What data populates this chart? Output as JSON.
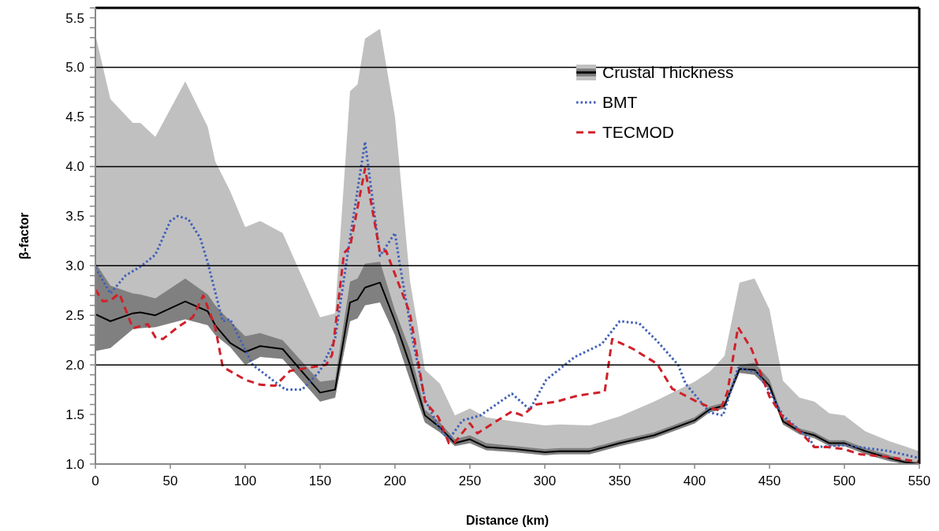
{
  "chart_data": {
    "type": "line",
    "xlabel": "Distance (km)",
    "ylabel": "β-factor",
    "xlim": [
      0,
      550
    ],
    "xticks": [
      0,
      50,
      100,
      150,
      200,
      250,
      300,
      350,
      400,
      450,
      500,
      550
    ],
    "ylim": [
      1.0,
      5.6
    ],
    "yticks": [
      {
        "value": 1.0,
        "label": "1.0"
      },
      1.5,
      {
        "value": 2.0,
        "label": "2.0"
      },
      2.5,
      {
        "value": 3.0,
        "label": "3.0"
      },
      3.5,
      {
        "value": 4.0,
        "label": "4.0"
      },
      4.5,
      {
        "value": 5.0,
        "label": "5.0"
      },
      5.5
    ],
    "grid": "y",
    "legend": "top right",
    "marker": "none",
    "series": [
      {
        "type": "area",
        "color": "#c0c0c0",
        "x": [
          0,
          10,
          25,
          30,
          40,
          60,
          75,
          80,
          90,
          100,
          110,
          125,
          150,
          160,
          170,
          175,
          180,
          190,
          200,
          210,
          220,
          230,
          240,
          250,
          261,
          280,
          300,
          310,
          330,
          350,
          373,
          400,
          410,
          420,
          430,
          440,
          450,
          459,
          470,
          480,
          490,
          500,
          514,
          530,
          540,
          550
        ],
        "values": [
          5.33,
          4.68,
          4.44,
          4.44,
          4.3,
          4.86,
          4.4,
          4.05,
          3.75,
          3.39,
          3.45,
          3.33,
          2.48,
          2.52,
          4.76,
          4.83,
          5.29,
          5.39,
          4.5,
          2.85,
          1.95,
          1.81,
          1.49,
          1.56,
          1.47,
          1.43,
          1.39,
          1.4,
          1.39,
          1.48,
          1.63,
          1.83,
          1.93,
          2.09,
          2.83,
          2.87,
          2.56,
          1.84,
          1.67,
          1.63,
          1.51,
          1.49,
          1.33,
          1.23,
          1.18,
          1.13
        ]
      },
      {
        "name": "Crustal Thickness",
        "color": "#000000",
        "line_style": "solid",
        "x": [
          0,
          10,
          25,
          30,
          40,
          60,
          75,
          80,
          90,
          100,
          110,
          125,
          150,
          160,
          170,
          175,
          180,
          190,
          200,
          210,
          220,
          230,
          240,
          250,
          261,
          280,
          300,
          310,
          330,
          350,
          373,
          400,
          410,
          420,
          430,
          440,
          450,
          459,
          470,
          480,
          490,
          500,
          514,
          530,
          540,
          550
        ],
        "values": [
          2.51,
          2.44,
          2.52,
          2.53,
          2.5,
          2.64,
          2.54,
          2.4,
          2.22,
          2.13,
          2.19,
          2.16,
          1.72,
          1.75,
          2.63,
          2.66,
          2.78,
          2.83,
          2.44,
          2.0,
          1.49,
          1.37,
          1.21,
          1.25,
          1.17,
          1.15,
          1.12,
          1.13,
          1.13,
          1.21,
          1.29,
          1.44,
          1.55,
          1.59,
          1.96,
          1.95,
          1.79,
          1.43,
          1.33,
          1.29,
          1.21,
          1.21,
          1.13,
          1.06,
          1.02,
          1.0
        ],
        "lower": [
          2.14,
          2.17,
          2.36,
          2.37,
          2.38,
          2.46,
          2.4,
          2.3,
          2.18,
          2.0,
          2.08,
          2.06,
          1.63,
          1.67,
          2.44,
          2.47,
          2.6,
          2.63,
          2.3,
          1.85,
          1.42,
          1.32,
          1.18,
          1.21,
          1.14,
          1.12,
          1.09,
          1.1,
          1.1,
          1.18,
          1.26,
          1.41,
          1.52,
          1.56,
          1.92,
          1.9,
          1.75,
          1.4,
          1.3,
          1.26,
          1.18,
          1.18,
          1.1,
          1.03,
          1.0,
          1.0
        ],
        "upper": [
          3.03,
          2.8,
          2.72,
          2.71,
          2.67,
          2.87,
          2.71,
          2.6,
          2.44,
          2.29,
          2.32,
          2.25,
          1.83,
          1.85,
          2.84,
          2.87,
          3.02,
          3.04,
          2.55,
          2.15,
          1.55,
          1.42,
          1.25,
          1.29,
          1.21,
          1.18,
          1.15,
          1.16,
          1.16,
          1.24,
          1.32,
          1.47,
          1.58,
          1.62,
          2.0,
          2.02,
          1.85,
          1.47,
          1.36,
          1.32,
          1.24,
          1.24,
          1.16,
          1.09,
          1.04,
          1.02
        ]
      },
      {
        "name": "BMT",
        "color": "#4060b8",
        "line_style": "dotted",
        "x": [
          0,
          10,
          20,
          30,
          40,
          50,
          55,
          62,
          70,
          75,
          85,
          90,
          105,
          118,
          127,
          138,
          150,
          160,
          168,
          180,
          190,
          200,
          203,
          212,
          220,
          230,
          236,
          245,
          257,
          278,
          290,
          301,
          320,
          338,
          350,
          363,
          375,
          389,
          394,
          410,
          419,
          429,
          442,
          450,
          459,
          477,
          480,
          500,
          530,
          550
        ],
        "values": [
          2.98,
          2.72,
          2.9,
          2.99,
          3.11,
          3.45,
          3.5,
          3.47,
          3.28,
          3.03,
          2.44,
          2.46,
          2.0,
          1.85,
          1.75,
          1.75,
          1.94,
          2.26,
          3.08,
          4.25,
          3.1,
          3.33,
          3.03,
          2.24,
          1.65,
          1.35,
          1.25,
          1.44,
          1.49,
          1.71,
          1.55,
          1.85,
          2.08,
          2.21,
          2.44,
          2.42,
          2.24,
          2.0,
          1.81,
          1.52,
          1.49,
          1.97,
          1.92,
          1.73,
          1.49,
          1.25,
          1.17,
          1.19,
          1.13,
          1.06
        ]
      },
      {
        "name": "TECMOD",
        "color": "#d0202a",
        "line_style": "dashed",
        "x": [
          0,
          5,
          10,
          16,
          25,
          35,
          40,
          45,
          55,
          65,
          72,
          80,
          85,
          100,
          110,
          120,
          130,
          154,
          158,
          166,
          170,
          180,
          190,
          194,
          210,
          220,
          229,
          236,
          240,
          250,
          255,
          278,
          285,
          294,
          308,
          322,
          340,
          345,
          359,
          375,
          385,
          400,
          412,
          417,
          422,
          429,
          438,
          450,
          459,
          470,
          480,
          489,
          500,
          510,
          530,
          550
        ],
        "values": [
          2.76,
          2.64,
          2.65,
          2.72,
          2.37,
          2.41,
          2.28,
          2.26,
          2.38,
          2.48,
          2.7,
          2.38,
          1.98,
          1.85,
          1.8,
          1.79,
          1.94,
          2.0,
          2.1,
          3.13,
          3.19,
          3.98,
          3.13,
          3.15,
          2.52,
          1.63,
          1.47,
          1.21,
          1.22,
          1.41,
          1.31,
          1.53,
          1.49,
          1.6,
          1.63,
          1.69,
          1.73,
          2.26,
          2.16,
          2.01,
          1.76,
          1.64,
          1.56,
          1.54,
          1.73,
          2.38,
          2.16,
          1.68,
          1.47,
          1.33,
          1.17,
          1.17,
          1.15,
          1.1,
          1.07,
          1.02
        ]
      }
    ]
  }
}
